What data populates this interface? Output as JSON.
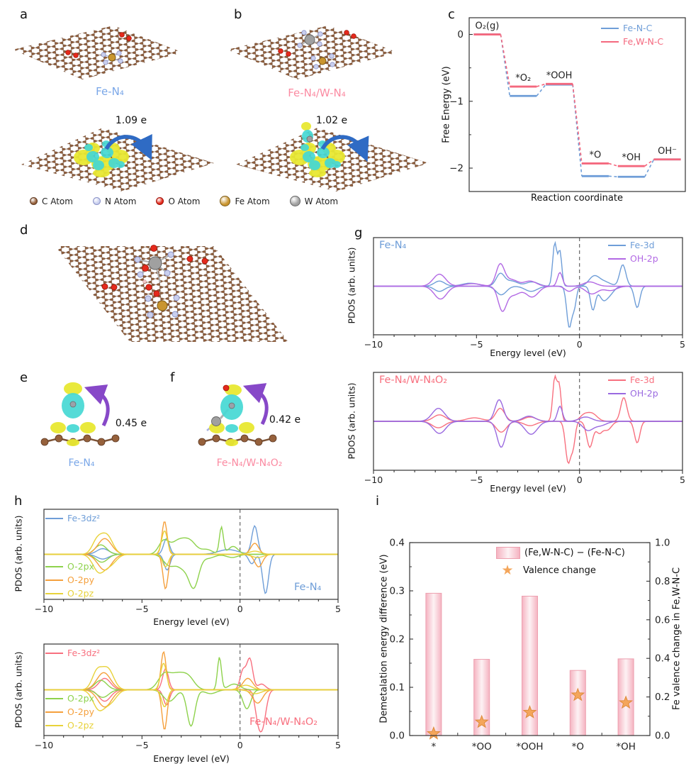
{
  "figure": {
    "panel_letters": {
      "a": "a",
      "b": "b",
      "c": "c",
      "d": "d",
      "e": "e",
      "f": "f",
      "g": "g",
      "h": "h",
      "i": "i"
    },
    "panel_a": {
      "title": "Fe-N₄",
      "title_color": "#7aa7e8",
      "charge_label": "1.09 e"
    },
    "panel_b": {
      "title": "Fe-N₄/W-N₄",
      "title_color": "#fb8ba2",
      "charge_label": "1.02 e"
    },
    "panel_e": {
      "title": "Fe-N₄",
      "title_color": "#7aa7e8",
      "charge_label": "0.45 e"
    },
    "panel_f": {
      "title": "Fe-N₄/W-N₄O₂",
      "title_color": "#fb8ba2",
      "charge_label": "0.42 e"
    },
    "atom_legend": [
      {
        "label": "C Atom",
        "color": "#96613c",
        "border": "#5f3a22",
        "size": 9
      },
      {
        "label": "N Atom",
        "color": "#c9cfee",
        "border": "#8a92c8",
        "size": 9
      },
      {
        "label": "O Atom",
        "color": "#e42a1c",
        "border": "#a01208",
        "size": 9
      },
      {
        "label": "Fe Atom",
        "color": "#c9952f",
        "border": "#7d5a14",
        "size": 13
      },
      {
        "label": "W Atom",
        "color": "#a0a0a0",
        "border": "#646464",
        "size": 13
      }
    ]
  },
  "chart_data": [
    {
      "id": "c",
      "type": "step",
      "xlabel": "Reaction coordinate",
      "ylabel": "Free Energy (eV)",
      "states": [
        "O₂(g)",
        "*O₂",
        "*OOH",
        "*O",
        "*OH",
        "OH⁻"
      ],
      "ylim": [
        -2.35,
        0.25
      ],
      "yticks": [
        0,
        -1,
        -2
      ],
      "series": [
        {
          "name": "Fe-N-C",
          "color": "#6f9ed8",
          "values": [
            0,
            -0.92,
            -0.75,
            -2.12,
            -2.13,
            -1.87
          ]
        },
        {
          "name": "Fe,W-N-C",
          "color": "#f4687e",
          "values": [
            0,
            -0.78,
            -0.74,
            -1.93,
            -1.97,
            -1.87
          ]
        }
      ]
    },
    {
      "id": "g1",
      "type": "pdos",
      "panel_label": "Fe-N₄",
      "panel_label_color": "#6f9ed8",
      "xlabel": "Energy level (eV)",
      "ylabel": "PDOS (arb. units)",
      "xlim": [
        -10,
        5
      ],
      "xticks": [
        -10,
        -5,
        0,
        5
      ],
      "series": [
        {
          "name": "Fe-3d",
          "color": "#6f9ed8",
          "up": [
            [
              -6.8,
              0.25,
              0.12
            ],
            [
              -5.3,
              0.4,
              0.07
            ],
            [
              -3.85,
              0.2,
              0.28
            ],
            [
              -3.3,
              0.3,
              0.12
            ],
            [
              -2.3,
              0.3,
              0.1
            ],
            [
              -1.2,
              0.1,
              1.0
            ],
            [
              -0.95,
              0.09,
              0.8
            ],
            [
              0.7,
              0.25,
              0.22
            ],
            [
              1.2,
              0.3,
              0.1
            ],
            [
              2.1,
              0.15,
              0.5
            ]
          ],
          "down": [
            [
              -6.8,
              0.25,
              0.12
            ],
            [
              -3.8,
              0.25,
              0.2
            ],
            [
              -2.35,
              0.3,
              0.12
            ],
            [
              -0.5,
              0.12,
              0.95
            ],
            [
              -0.25,
              0.1,
              0.45
            ],
            [
              0.65,
              0.12,
              0.55
            ],
            [
              1.15,
              0.2,
              0.3
            ],
            [
              1.5,
              0.2,
              0.15
            ],
            [
              2.8,
              0.13,
              0.5
            ]
          ]
        },
        {
          "name": "OH-2p",
          "color": "#b269e4",
          "up": [
            [
              -6.8,
              0.3,
              0.28
            ],
            [
              -5.2,
              0.4,
              0.06
            ],
            [
              -3.85,
              0.2,
              0.5
            ],
            [
              -3.3,
              0.3,
              0.15
            ],
            [
              -2.4,
              0.3,
              0.12
            ],
            [
              -0.95,
              0.12,
              0.32
            ],
            [
              0.5,
              0.3,
              0.1
            ]
          ],
          "down": [
            [
              -6.75,
              0.3,
              0.3
            ],
            [
              -3.75,
              0.2,
              0.55
            ],
            [
              -3.2,
              0.3,
              0.2
            ],
            [
              -2.3,
              0.3,
              0.25
            ],
            [
              -0.5,
              0.2,
              0.12
            ],
            [
              0.6,
              0.3,
              0.18
            ],
            [
              1.5,
              0.3,
              0.1
            ]
          ]
        }
      ]
    },
    {
      "id": "g2",
      "type": "pdos",
      "panel_label": "Fe-N₄/W-N₄O₂",
      "panel_label_color": "#f8707f",
      "xlabel": "Energy level (eV)",
      "ylabel": "PDOS (arb. units)",
      "xlim": [
        -10,
        5
      ],
      "xticks": [
        -10,
        -5,
        0,
        5
      ],
      "series": [
        {
          "name": "Fe-3d",
          "color": "#f8707f",
          "up": [
            [
              -6.8,
              0.3,
              0.15
            ],
            [
              -5.1,
              0.4,
              0.08
            ],
            [
              -3.85,
              0.22,
              0.3
            ],
            [
              -2.4,
              0.3,
              0.1
            ],
            [
              -1.2,
              0.1,
              1.0
            ],
            [
              -0.98,
              0.09,
              0.8
            ],
            [
              0.2,
              0.2,
              0.12
            ],
            [
              0.6,
              0.25,
              0.18
            ],
            [
              2.15,
              0.15,
              0.55
            ]
          ],
          "down": [
            [
              -6.85,
              0.3,
              0.15
            ],
            [
              -3.8,
              0.25,
              0.25
            ],
            [
              -2.4,
              0.3,
              0.1
            ],
            [
              -0.55,
              0.13,
              0.95
            ],
            [
              -0.3,
              0.1,
              0.5
            ],
            [
              0.5,
              0.15,
              0.6
            ],
            [
              0.95,
              0.15,
              0.25
            ],
            [
              1.35,
              0.2,
              0.2
            ],
            [
              2.8,
              0.13,
              0.5
            ]
          ]
        },
        {
          "name": "OH-2p",
          "color": "#9a6ae0",
          "up": [
            [
              -6.85,
              0.3,
              0.3
            ],
            [
              -3.9,
              0.2,
              0.5
            ],
            [
              -2.45,
              0.3,
              0.12
            ],
            [
              -0.95,
              0.12,
              0.35
            ],
            [
              0.3,
              0.3,
              0.1
            ]
          ],
          "down": [
            [
              -6.8,
              0.3,
              0.28
            ],
            [
              -3.8,
              0.2,
              0.6
            ],
            [
              -2.35,
              0.3,
              0.3
            ],
            [
              0.4,
              0.25,
              0.2
            ],
            [
              1.0,
              0.3,
              0.1
            ]
          ]
        }
      ]
    },
    {
      "id": "h1",
      "type": "pdos",
      "panel_label": "Fe-N₄",
      "panel_label_color": "#6f9ed8",
      "xlabel": "Energy level (eV)",
      "ylabel": "PDOS (arb. units)",
      "xlim": [
        -10,
        5
      ],
      "xticks": [
        -10,
        -5,
        0,
        5
      ],
      "series": [
        {
          "name": "Fe-3dz²",
          "color": "#6f9ed8",
          "up": [
            [
              -7.0,
              0.3,
              0.18
            ],
            [
              -3.75,
              0.15,
              0.5
            ],
            [
              -0.6,
              0.5,
              0.15
            ],
            [
              0.75,
              0.15,
              0.9
            ]
          ],
          "down": [
            [
              -7.0,
              0.3,
              0.15
            ],
            [
              -3.72,
              0.15,
              0.5
            ],
            [
              0.6,
              0.15,
              0.3
            ],
            [
              1.3,
              0.15,
              1.25
            ]
          ]
        },
        {
          "name": "O-2px",
          "color": "#8ed24c",
          "up": [
            [
              -7.1,
              0.3,
              0.3
            ],
            [
              -3.9,
              0.25,
              0.4
            ],
            [
              -3.1,
              0.4,
              0.45
            ],
            [
              -2.5,
              0.3,
              0.3
            ],
            [
              -1.7,
              0.3,
              0.15
            ],
            [
              -0.95,
              0.1,
              0.85
            ],
            [
              -0.35,
              0.25,
              0.25
            ]
          ],
          "down": [
            [
              -7.05,
              0.3,
              0.25
            ],
            [
              -3.6,
              0.3,
              0.35
            ],
            [
              -2.9,
              0.3,
              0.4
            ],
            [
              -2.35,
              0.25,
              1.0
            ],
            [
              -1.6,
              0.3,
              0.12
            ],
            [
              -0.4,
              0.3,
              0.1
            ]
          ]
        },
        {
          "name": "O-2py",
          "color": "#f5a03c",
          "up": [
            [
              -6.9,
              0.35,
              0.5
            ],
            [
              -3.85,
              0.13,
              1.05
            ],
            [
              0.75,
              0.2,
              0.35
            ]
          ],
          "down": [
            [
              -6.9,
              0.35,
              0.5
            ],
            [
              -3.8,
              0.13,
              1.1
            ],
            [
              0.95,
              0.2,
              0.4
            ]
          ]
        },
        {
          "name": "O-2pz",
          "color": "#e8d23a",
          "up": [
            [
              -7.3,
              0.25,
              0.4
            ],
            [
              -6.8,
              0.3,
              0.6
            ],
            [
              -3.85,
              0.15,
              0.75
            ],
            [
              0.75,
              0.3,
              0.1
            ]
          ],
          "down": [
            [
              -7.2,
              0.3,
              0.55
            ],
            [
              -6.6,
              0.3,
              0.3
            ],
            [
              -3.8,
              0.15,
              0.4
            ],
            [
              0.9,
              0.3,
              0.1
            ]
          ]
        }
      ]
    },
    {
      "id": "h2",
      "type": "pdos",
      "panel_label": "Fe-N₄/W-N₄O₂",
      "panel_label_color": "#f8707f",
      "xlabel": "Energy level (eV)",
      "ylabel": "PDOS (arb. units)",
      "xlim": [
        -10,
        5
      ],
      "xticks": [
        -10,
        -5,
        0,
        5
      ],
      "series": [
        {
          "name": "Fe-3dz²",
          "color": "#f8707f",
          "up": [
            [
              -6.9,
              0.3,
              0.3
            ],
            [
              -3.8,
              0.15,
              0.55
            ],
            [
              0.15,
              0.15,
              0.5
            ],
            [
              0.5,
              0.15,
              0.8
            ],
            [
              1.1,
              0.2,
              0.15
            ]
          ],
          "down": [
            [
              -6.9,
              0.3,
              0.3
            ],
            [
              -3.75,
              0.15,
              0.4
            ],
            [
              0.9,
              0.15,
              0.55
            ],
            [
              1.15,
              0.18,
              0.9
            ]
          ]
        },
        {
          "name": "O-2px",
          "color": "#8ed24c",
          "up": [
            [
              -7.1,
              0.3,
              0.25
            ],
            [
              -3.9,
              0.3,
              0.35
            ],
            [
              -3.2,
              0.4,
              0.4
            ],
            [
              -2.6,
              0.3,
              0.25
            ],
            [
              -1.05,
              0.1,
              0.85
            ],
            [
              -0.3,
              0.3,
              0.15
            ]
          ],
          "down": [
            [
              -7.0,
              0.3,
              0.2
            ],
            [
              -3.6,
              0.3,
              0.3
            ],
            [
              -2.5,
              0.2,
              0.95
            ],
            [
              -1.5,
              0.3,
              0.1
            ],
            [
              0.35,
              0.2,
              0.5
            ]
          ]
        },
        {
          "name": "O-2py",
          "color": "#f5a03c",
          "up": [
            [
              -6.95,
              0.35,
              0.45
            ],
            [
              -3.9,
              0.13,
              1.0
            ],
            [
              0.4,
              0.25,
              0.3
            ]
          ],
          "down": [
            [
              -6.9,
              0.35,
              0.45
            ],
            [
              -3.85,
              0.13,
              1.05
            ],
            [
              0.9,
              0.25,
              0.35
            ]
          ]
        },
        {
          "name": "O-2pz",
          "color": "#e8d23a",
          "up": [
            [
              -7.3,
              0.25,
              0.45
            ],
            [
              -6.75,
              0.3,
              0.55
            ],
            [
              -3.9,
              0.15,
              0.7
            ],
            [
              0.3,
              0.3,
              0.12
            ]
          ],
          "down": [
            [
              -7.2,
              0.3,
              0.5
            ],
            [
              -6.6,
              0.3,
              0.3
            ],
            [
              -3.85,
              0.15,
              0.45
            ],
            [
              0.8,
              0.3,
              0.1
            ]
          ]
        }
      ]
    },
    {
      "id": "i",
      "type": "bar",
      "categories": [
        "*",
        "*OO",
        "*OOH",
        "*O",
        "*OH"
      ],
      "bar_series": {
        "name": "(Fe,W-N-C) − (Fe-N-C)",
        "values": [
          0.295,
          0.158,
          0.289,
          0.135,
          0.159
        ],
        "fill_edge": "#f5b3c1",
        "fill_center": "#fdf2f4",
        "stroke": "#eda0af"
      },
      "star_series": {
        "name": "Valence change",
        "values": [
          0.01,
          0.07,
          0.12,
          0.21,
          0.17
        ],
        "color": "#f4a65b",
        "stroke": "#df8a3b"
      },
      "ylabel_left": "Demetalation energy difference (eV)",
      "ylabel_right": "Fe valence change in Fe,W-N-C",
      "ylim_left": [
        0,
        0.4
      ],
      "yticks_left": [
        0,
        0.1,
        0.2,
        0.3,
        0.4
      ],
      "ylim_right": [
        0,
        1
      ],
      "yticks_right": [
        0,
        0.2,
        0.4,
        0.6,
        0.8,
        1
      ]
    }
  ]
}
